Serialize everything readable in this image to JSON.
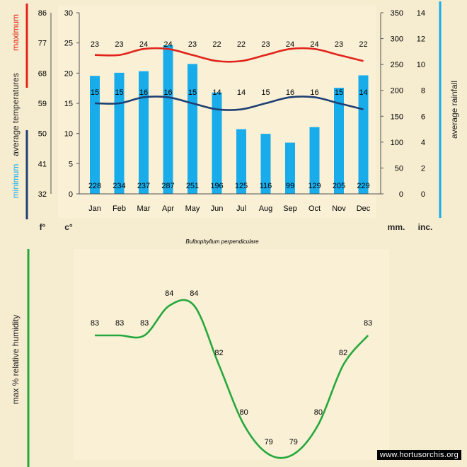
{
  "chart_data": [
    {
      "type": "bar",
      "title": "Bulbophyllum perpendiculare",
      "categories": [
        "Jan",
        "Feb",
        "Mar",
        "Apr",
        "May",
        "Jun",
        "Jul",
        "Aug",
        "Sep",
        "Oct",
        "Nov",
        "Dec"
      ],
      "series": [
        {
          "name": "average rainfall",
          "type": "bar",
          "unit": "mm.",
          "axis": "right",
          "color": "#18acea",
          "values": [
            228,
            234,
            237,
            287,
            251,
            196,
            125,
            116,
            99,
            129,
            205,
            229
          ]
        },
        {
          "name": "maximum",
          "type": "line",
          "unit": "c°",
          "axis": "left",
          "color": "#e2231a",
          "values": [
            23,
            23,
            24,
            24,
            23,
            22,
            22,
            23,
            24,
            24,
            23,
            22
          ]
        },
        {
          "name": "minimum",
          "type": "line",
          "unit": "c°",
          "axis": "left",
          "color": "#1f3f74",
          "values": [
            15,
            15,
            16,
            16,
            15,
            14,
            14,
            15,
            16,
            16,
            15,
            14
          ]
        }
      ],
      "y_left_celsius": {
        "ticks": [
          0,
          5,
          10,
          15,
          20,
          25,
          30
        ],
        "unit_label": "c°",
        "ylim": [
          0,
          30
        ]
      },
      "y_left_fahrenheit": {
        "ticks": [
          32,
          41,
          50,
          59,
          68,
          77,
          86
        ],
        "unit_label": "f°"
      },
      "y_right_mm": {
        "ticks": [
          0,
          50,
          100,
          150,
          200,
          250,
          300,
          350
        ],
        "unit_label": "mm.",
        "ylim": [
          0,
          350
        ]
      },
      "y_right_inches": {
        "ticks": [
          0,
          2,
          4,
          6,
          8,
          10,
          12,
          14
        ],
        "unit_label": "inc."
      },
      "labels": {
        "left_axis_max": "maximum",
        "left_axis_middle": "average temperatures",
        "left_axis_min": "minimum",
        "right_axis": "average rainfall"
      }
    },
    {
      "type": "line",
      "categories": [
        "Jan",
        "Feb",
        "Mar",
        "Apr",
        "May",
        "Jun",
        "Jul",
        "Aug",
        "Sep",
        "Oct",
        "Nov",
        "Dec"
      ],
      "series": [
        {
          "name": "max % relative humidity",
          "color": "#27a83c",
          "values": [
            83,
            83,
            83,
            84,
            84,
            82,
            80,
            79,
            79,
            80,
            82,
            83
          ]
        }
      ],
      "ylabel": "max %  relative humidity",
      "ylim": [
        75,
        87
      ]
    }
  ],
  "watermark": "www.hortusorchis.org"
}
